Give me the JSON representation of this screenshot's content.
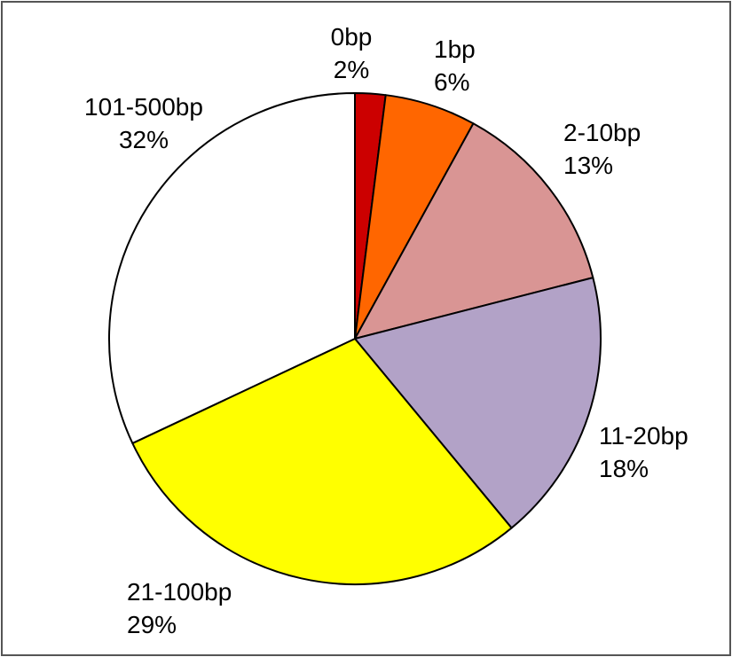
{
  "chart_data": {
    "type": "pie",
    "start": "12 o'clock",
    "direction": "clockwise",
    "slices": [
      {
        "label": "0bp",
        "percent_text": "2%",
        "value": 2,
        "color": "#cc0000"
      },
      {
        "label": "1bp",
        "percent_text": "6%",
        "value": 6,
        "color": "#ff6600"
      },
      {
        "label": "2-10bp",
        "percent_text": "13%",
        "value": 13,
        "color": "#d99594"
      },
      {
        "label": "11-20bp",
        "percent_text": "18%",
        "value": 18,
        "color": "#b2a2c7"
      },
      {
        "label": "21-100bp",
        "percent_text": "29%",
        "value": 29,
        "color": "#ffff00"
      },
      {
        "label": "101-500bp",
        "percent_text": "32%",
        "value": 32,
        "color": "#ffffff"
      }
    ]
  }
}
